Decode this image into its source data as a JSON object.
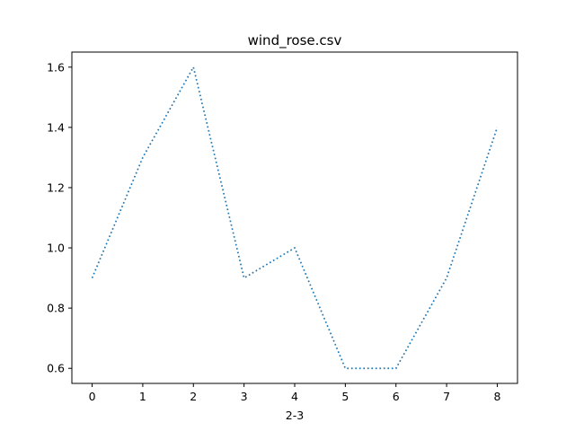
{
  "chart_data": {
    "type": "line",
    "title": "wind_rose.csv",
    "xlabel": "2-3",
    "ylabel": "",
    "x": [
      0,
      1,
      2,
      3,
      4,
      5,
      6,
      7,
      8
    ],
    "series": [
      {
        "values": [
          0.9,
          1.3,
          1.6,
          0.9,
          1.0,
          0.6,
          0.6,
          0.9,
          1.4
        ]
      }
    ],
    "xlim": [
      -0.4,
      8.4
    ],
    "ylim": [
      0.55,
      1.65
    ],
    "xticks": [
      0,
      1,
      2,
      3,
      4,
      5,
      6,
      7,
      8
    ],
    "yticks": [
      "0.6",
      "0.8",
      "1.0",
      "1.2",
      "1.4",
      "1.6"
    ],
    "line_style": "dotted",
    "line_color": "#1f77b4",
    "grid": false,
    "legend": "none"
  }
}
